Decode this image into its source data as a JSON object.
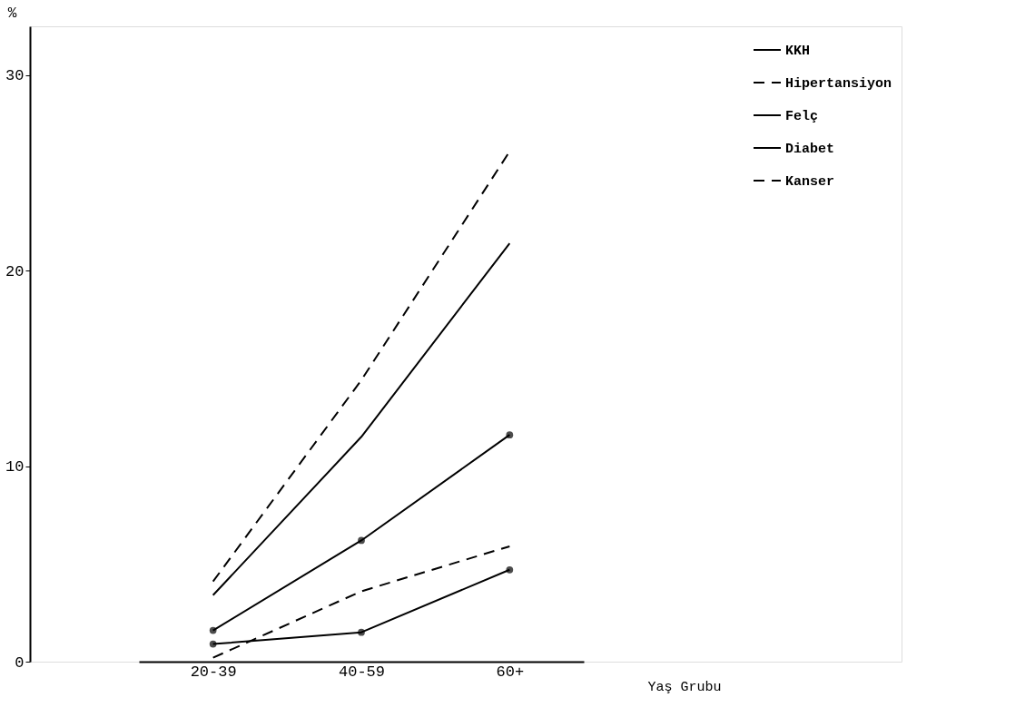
{
  "chart_data": {
    "type": "line",
    "categories": [
      "20-39",
      "40-59",
      "60+"
    ],
    "xlabel": "Yaş Grubu",
    "ylabel": "%",
    "ylim": [
      0,
      32.5
    ],
    "yticks": [
      0,
      10,
      20,
      30
    ],
    "grid": false,
    "legend": "top right",
    "series": [
      {
        "name": "KKH",
        "color": "#000000",
        "line_style": "solid",
        "marker": "none",
        "values": [
          3.4,
          11.5,
          21.4
        ]
      },
      {
        "name": "Hipertansiyon",
        "color": "#000000",
        "line_style": "dashed",
        "marker": "none",
        "values": [
          4.1,
          14.4,
          26.1
        ]
      },
      {
        "name": "Felç",
        "color": "#000000",
        "line_style": "solid",
        "marker": "circle",
        "values": [
          0.9,
          1.5,
          4.7
        ]
      },
      {
        "name": "Diabet",
        "color": "#000000",
        "line_style": "solid",
        "marker": "circle",
        "values": [
          1.6,
          6.2,
          11.6
        ]
      },
      {
        "name": "Kanser",
        "color": "#000000",
        "line_style": "dashed",
        "marker": "none",
        "values": [
          0.2,
          3.6,
          5.9
        ]
      }
    ]
  }
}
